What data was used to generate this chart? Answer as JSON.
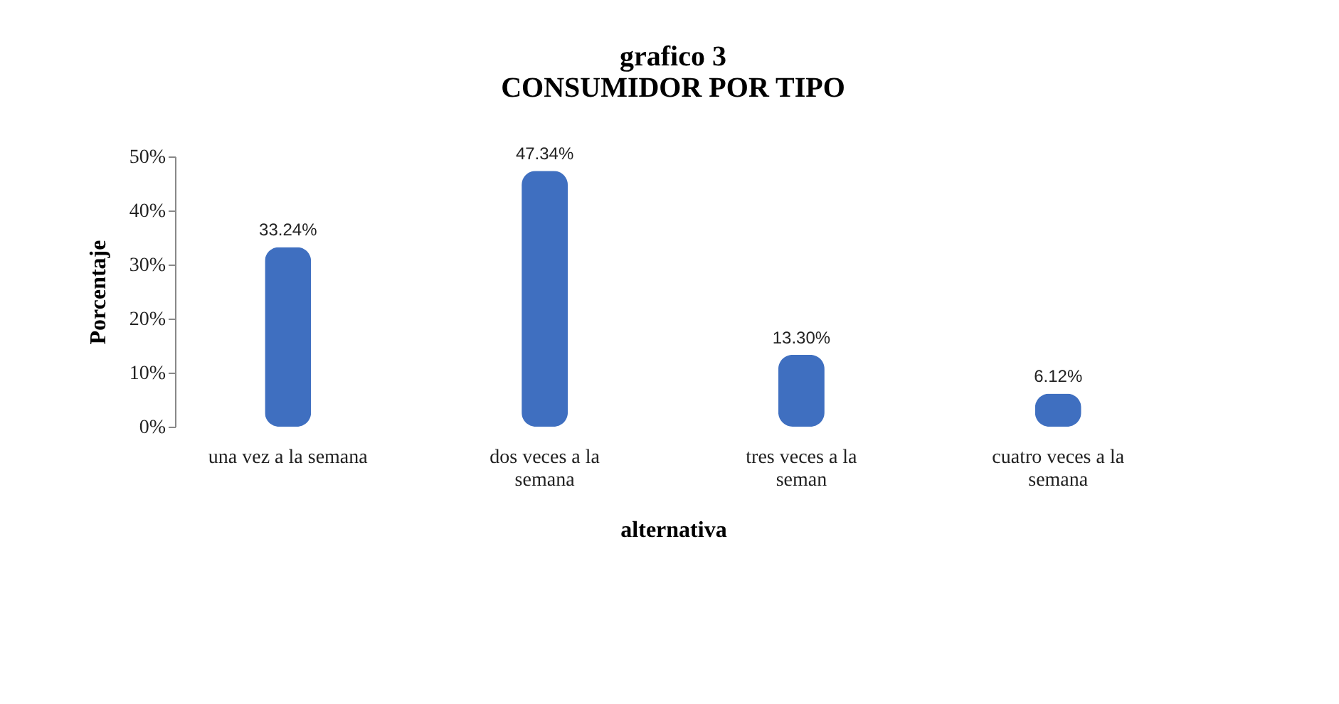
{
  "chart_data": {
    "type": "bar",
    "title": "grafico 3",
    "subtitle": "CONSUMIDOR POR TIPO",
    "xlabel": "alternativa",
    "ylabel": "Porcentaje",
    "categories": [
      "una vez a la semana",
      "dos veces a la semana",
      "tres veces a la seman",
      "cuatro veces a la semana"
    ],
    "values": [
      33.24,
      47.34,
      13.3,
      6.12
    ],
    "color": "#3f6fc0",
    "value_labels": [
      "33.24%",
      "47.34%",
      "13.30%",
      "6.12%"
    ],
    "ylim": [
      0,
      50
    ],
    "yticks": [
      {
        "value": 0,
        "label": "0%"
      },
      {
        "value": 10,
        "label": "10%"
      },
      {
        "value": 20,
        "label": "20%"
      },
      {
        "value": 30,
        "label": "30%"
      },
      {
        "value": 40,
        "label": "40%"
      },
      {
        "value": 50,
        "label": "50%"
      }
    ],
    "grid": false
  }
}
